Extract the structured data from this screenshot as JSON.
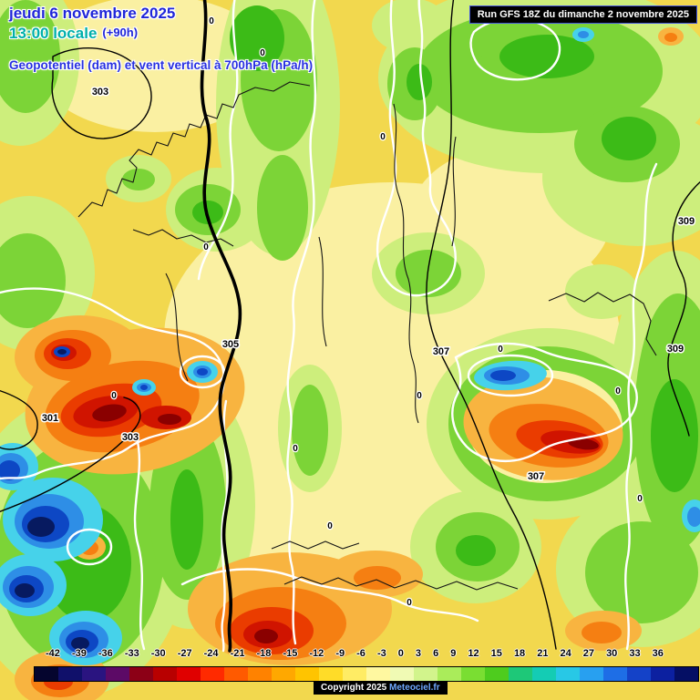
{
  "header": {
    "date": "jeudi 6 novembre 2025",
    "time": "13:00 locale",
    "offset": "(+90h)",
    "subtitle": "Geopotentiel (dam) et vent vertical à 700hPa (hPa/h)"
  },
  "run_info": {
    "text": "Run GFS 18Z du dimanche 2 novembre 2025"
  },
  "copyright": {
    "prefix": "Copyright 2025",
    "site": "Meteociel.fr"
  },
  "scale": {
    "unit": "hPa/h",
    "values": [
      -42,
      -39,
      -36,
      -33,
      -30,
      -27,
      -24,
      -21,
      -18,
      -15,
      -12,
      -9,
      -6,
      -3,
      0,
      3,
      6,
      9,
      12,
      15,
      18,
      21,
      24,
      27,
      30,
      33,
      36
    ],
    "colors": [
      "#05052e",
      "#10106a",
      "#2a1480",
      "#5c0a66",
      "#8c0016",
      "#b80000",
      "#e00000",
      "#ff2a00",
      "#ff5a00",
      "#ff8200",
      "#ffa800",
      "#ffc400",
      "#ffdc28",
      "#ffec64",
      "#fff8a0",
      "#f0fab4",
      "#d2f48c",
      "#aaec5a",
      "#7ade32",
      "#4ecc1e",
      "#1ec878",
      "#14ccb4",
      "#28c8e6",
      "#28a0f0",
      "#1e6ee6",
      "#1442c8",
      "#0c20a0",
      "#050f64"
    ]
  },
  "map": {
    "geopotential_labels": [
      {
        "text": "303"
      },
      {
        "text": "309"
      },
      {
        "text": "305"
      },
      {
        "text": "307"
      },
      {
        "text": "309"
      },
      {
        "text": "301"
      },
      {
        "text": "303"
      },
      {
        "text": "307"
      }
    ],
    "zero_labels": [
      {
        "text": "0"
      },
      {
        "text": "0"
      },
      {
        "text": "0"
      },
      {
        "text": "0"
      },
      {
        "text": "0"
      },
      {
        "text": "0"
      },
      {
        "text": "0"
      },
      {
        "text": "0"
      },
      {
        "text": "0"
      },
      {
        "text": "0"
      },
      {
        "text": "0"
      },
      {
        "text": "0"
      }
    ]
  }
}
